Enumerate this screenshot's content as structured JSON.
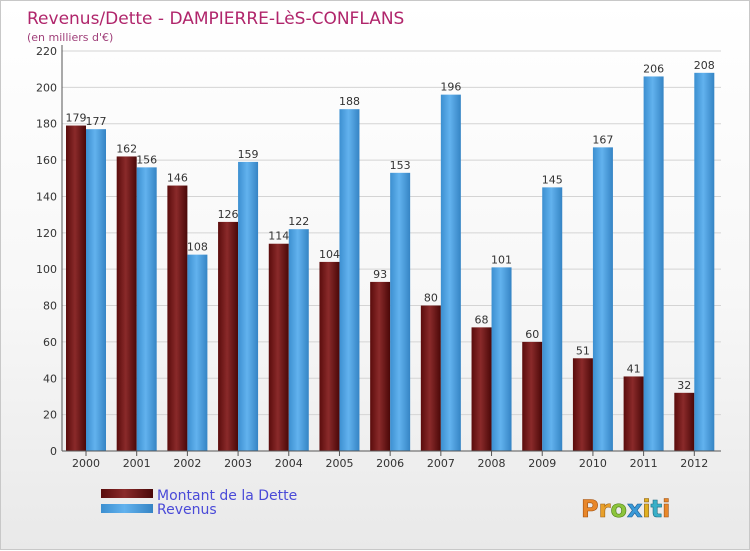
{
  "chart_data": {
    "type": "bar",
    "title": "Revenus/Dette - DAMPIERRE-LèS-CONFLANS",
    "subtitle": "(en milliers d'€)",
    "categories": [
      "2000",
      "2001",
      "2002",
      "2003",
      "2004",
      "2005",
      "2006",
      "2007",
      "2008",
      "2009",
      "2010",
      "2011",
      "2012"
    ],
    "series": [
      {
        "name": "Montant de la Dette",
        "color": "#7a1a1a",
        "values": [
          179,
          162,
          146,
          126,
          114,
          104,
          93,
          80,
          68,
          60,
          51,
          41,
          32
        ]
      },
      {
        "name": "Revenus",
        "color": "#4fa3e3",
        "values": [
          177,
          156,
          108,
          159,
          122,
          188,
          153,
          196,
          101,
          145,
          167,
          206,
          208
        ]
      }
    ],
    "ylim": [
      0,
      220
    ],
    "yticks": [
      0,
      20,
      40,
      60,
      80,
      100,
      120,
      140,
      160,
      180,
      200,
      220
    ],
    "grid": true,
    "legend_position": "bottom-left"
  },
  "logo": {
    "text": "Proxiti"
  }
}
